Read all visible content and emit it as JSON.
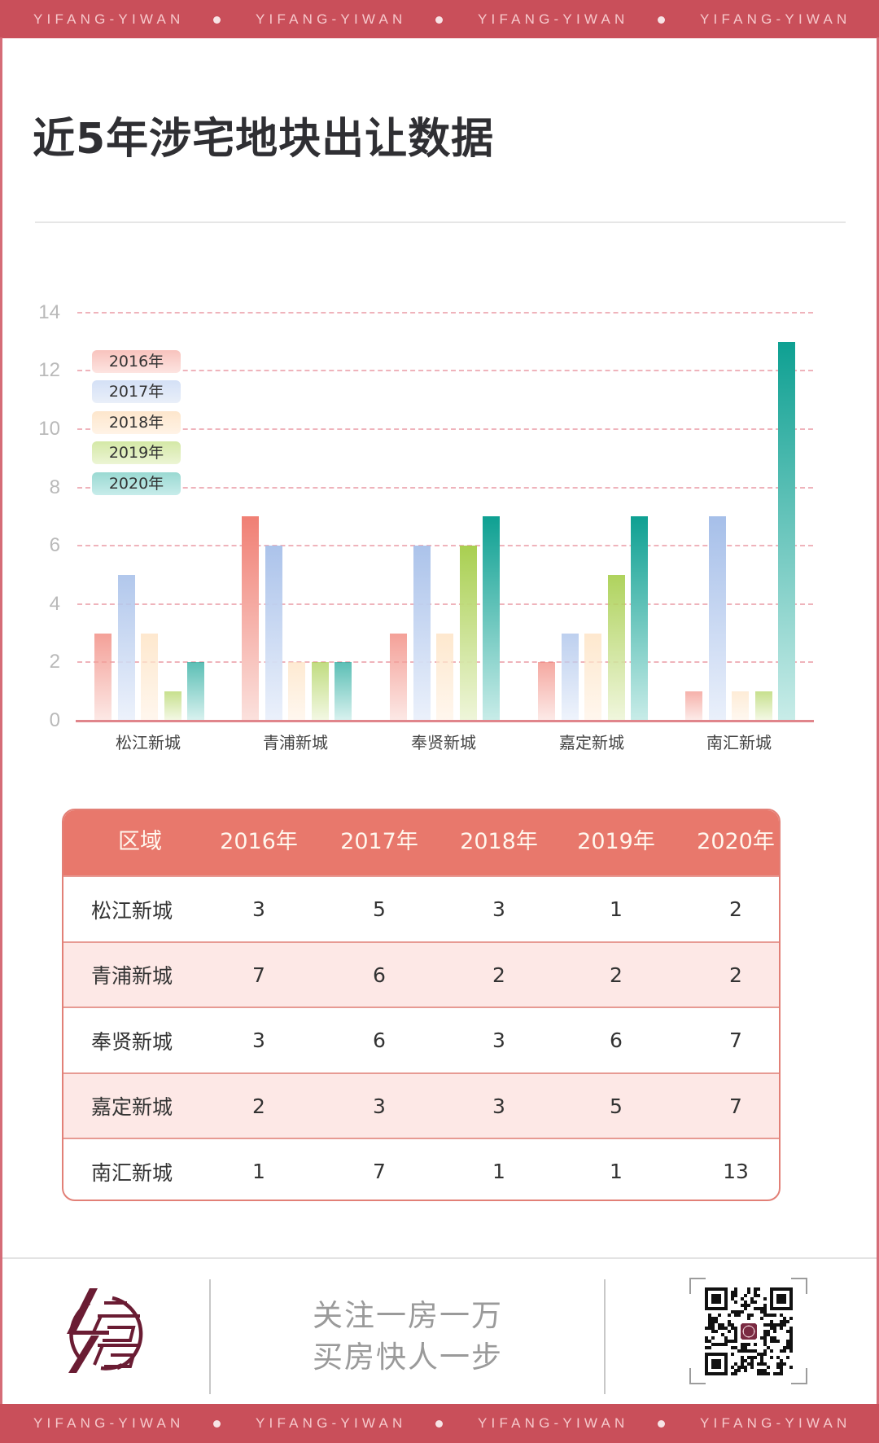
{
  "brand_band": {
    "text": "YIFANG-YIWAN",
    "repeat": 4,
    "color": "#c94f5a"
  },
  "header": {
    "title": "近5年涉宅地块出让数据"
  },
  "legend": [
    {
      "label": "2016年",
      "color": "#f2a49d"
    },
    {
      "label": "2017年",
      "color": "#a9c0ea"
    },
    {
      "label": "2018年",
      "color": "#fde0bd"
    },
    {
      "label": "2019年",
      "color": "#a8cf4a"
    },
    {
      "label": "2020年",
      "color": "#12a295"
    }
  ],
  "chart_data": {
    "type": "bar",
    "title": "近5年涉宅地块出让数据",
    "xlabel": "",
    "ylabel": "",
    "categories": [
      "松江新城",
      "青浦新城",
      "奉贤新城",
      "嘉定新城",
      "南汇新城"
    ],
    "series": [
      {
        "name": "2016年",
        "values": [
          3,
          7,
          3,
          2,
          1
        ]
      },
      {
        "name": "2017年",
        "values": [
          5,
          6,
          6,
          3,
          7
        ]
      },
      {
        "name": "2018年",
        "values": [
          3,
          2,
          3,
          3,
          1
        ]
      },
      {
        "name": "2019年",
        "values": [
          1,
          2,
          6,
          5,
          1
        ]
      },
      {
        "name": "2020年",
        "values": [
          2,
          2,
          7,
          7,
          13
        ]
      }
    ],
    "ylim": [
      0,
      14
    ],
    "yticks": [
      0,
      2,
      4,
      6,
      8,
      10,
      12,
      14
    ],
    "grid": true,
    "legend_position": "upper-left"
  },
  "table": {
    "headers": [
      "区域",
      "2016年",
      "2017年",
      "2018年",
      "2019年",
      "2020年"
    ],
    "rows": [
      [
        "松江新城",
        "3",
        "5",
        "3",
        "1",
        "2"
      ],
      [
        "青浦新城",
        "7",
        "6",
        "2",
        "2",
        "2"
      ],
      [
        "奉贤新城",
        "3",
        "6",
        "3",
        "6",
        "7"
      ],
      [
        "嘉定新城",
        "2",
        "3",
        "3",
        "5",
        "7"
      ],
      [
        "南汇新城",
        "1",
        "7",
        "1",
        "1",
        "13"
      ]
    ]
  },
  "footer": {
    "logo": "yifang-logo-icon",
    "slogan_line1": "关注一房一万",
    "slogan_line2": "买房快人一步",
    "qr": "qr-code-icon"
  }
}
